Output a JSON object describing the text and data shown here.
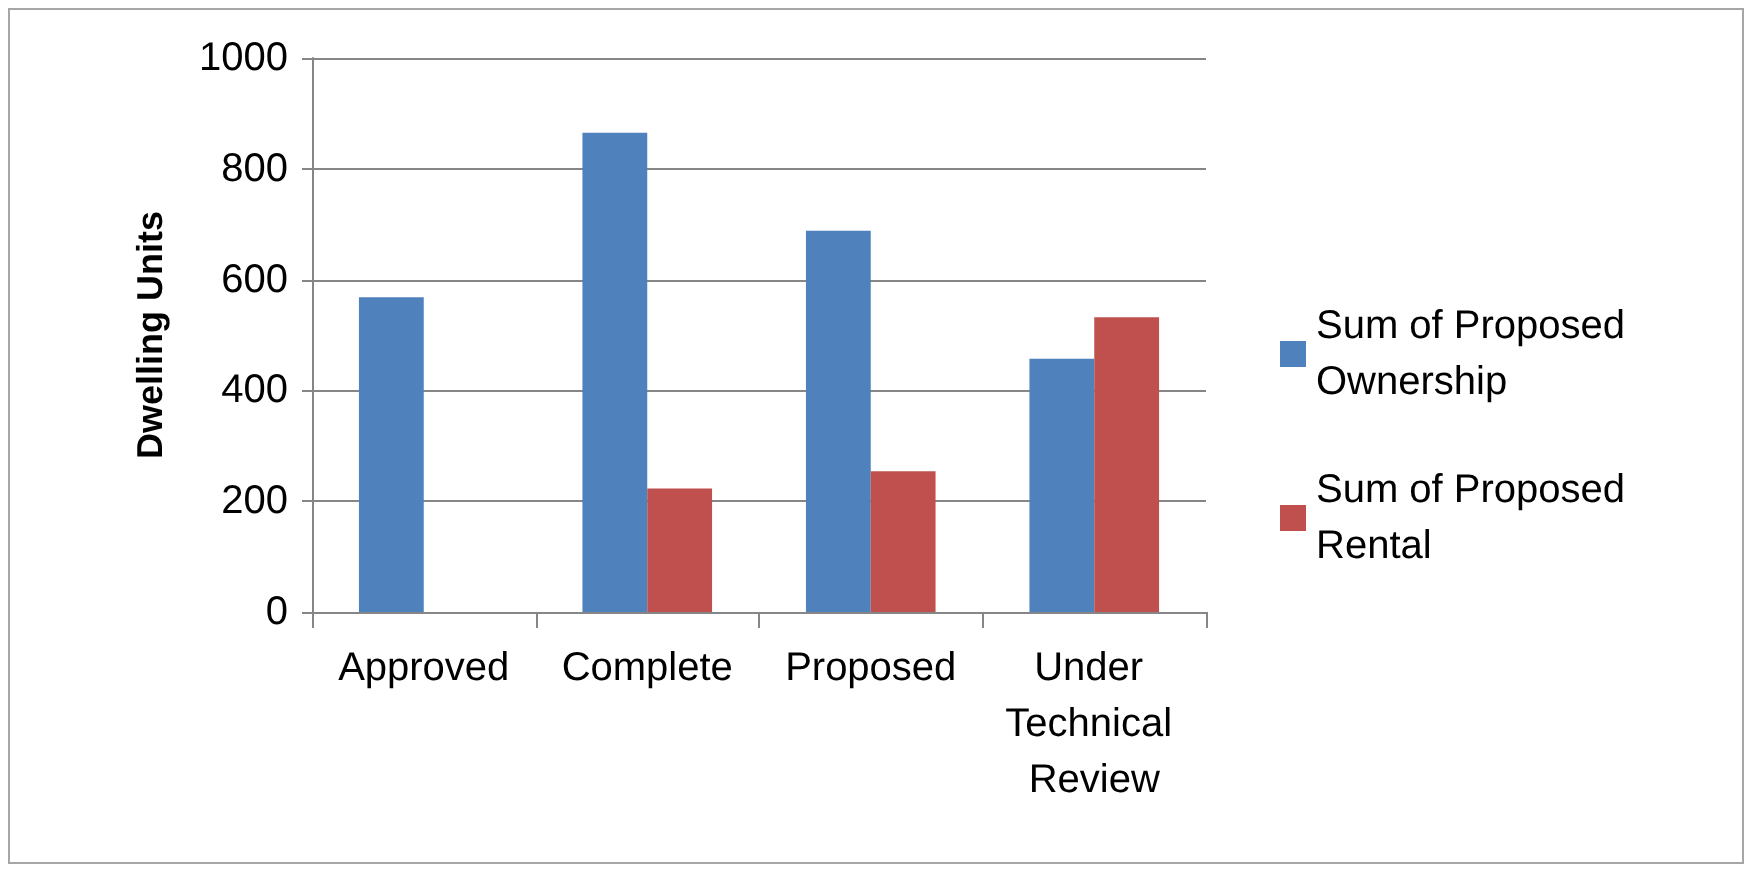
{
  "chart_data": {
    "type": "bar",
    "ylabel": "Dwelling Units",
    "categories": [
      "Approved",
      "Complete",
      "Proposed",
      "Under Technical Review"
    ],
    "series": [
      {
        "name": "Sum of Proposed Ownership",
        "color": "#4f81bd",
        "values": [
          568,
          865,
          688,
          457
        ]
      },
      {
        "name": "Sum of Proposed Rental",
        "color": "#c0504d",
        "values": [
          null,
          223,
          254,
          532
        ]
      }
    ],
    "ylim": [
      0,
      1000
    ],
    "yticks": [
      0,
      200,
      400,
      600,
      800,
      1000
    ],
    "grid": "y",
    "legend": "right"
  }
}
